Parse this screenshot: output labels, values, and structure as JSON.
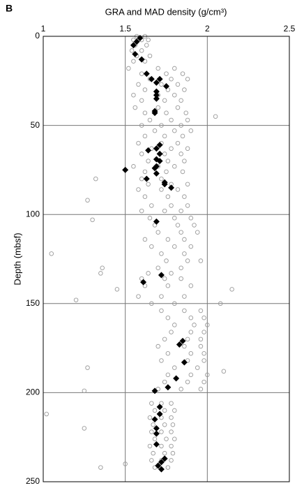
{
  "chart_data": {
    "type": "scatter",
    "panel_label": "B",
    "x_label": "GRA and MAD density (g/cm³)",
    "y_label": "Depth (mbsf)",
    "xlim": [
      1,
      2.5
    ],
    "xticks": [
      1,
      1.5,
      2,
      2.5
    ],
    "ylim": [
      0,
      250
    ],
    "yticks": [
      0,
      50,
      100,
      150,
      200,
      250
    ],
    "y_inverted": true,
    "x_axis_position": "top",
    "grid": true,
    "series": [
      {
        "color": "#999999",
        "marker": "circle",
        "x": [
          1.57,
          1.62,
          1.55,
          1.6,
          1.64,
          1.56,
          1.63,
          1.54,
          1.6,
          1.57,
          1.65,
          1.55,
          1.62,
          1.52,
          1.7,
          1.8,
          1.6,
          1.75,
          1.85,
          1.65,
          1.78,
          1.88,
          1.58,
          1.72,
          1.82,
          1.62,
          1.76,
          1.86,
          1.55,
          1.7,
          1.8,
          1.6,
          1.74,
          1.84,
          1.56,
          1.7,
          1.82,
          1.62,
          1.75,
          1.87,
          2.05,
          1.65,
          1.78,
          1.88,
          1.6,
          1.72,
          1.84,
          1.68,
          1.8,
          1.9,
          1.62,
          1.74,
          1.85,
          1.58,
          1.72,
          1.82,
          1.66,
          1.78,
          1.88,
          1.6,
          1.74,
          1.84,
          1.64,
          1.76,
          1.86,
          1.55,
          1.7,
          1.8,
          1.62,
          1.75,
          1.85,
          1.32,
          1.6,
          1.72,
          1.64,
          1.78,
          1.88,
          1.58,
          1.72,
          1.82,
          1.62,
          1.76,
          1.86,
          1.27,
          1.66,
          1.78,
          1.88,
          1.6,
          1.74,
          1.84,
          1.65,
          1.8,
          1.9,
          1.3,
          1.68,
          1.82,
          1.92,
          1.7,
          1.84,
          1.94,
          1.62,
          1.76,
          1.86,
          1.66,
          1.8,
          1.9,
          1.05,
          1.72,
          1.86,
          1.75,
          1.88,
          1.96,
          1.36,
          1.7,
          1.84,
          1.35,
          1.64,
          1.78,
          1.6,
          1.74,
          1.84,
          1.62,
          1.76,
          1.9,
          1.45,
          2.15,
          1.58,
          1.72,
          1.86,
          1.2,
          1.66,
          1.8,
          2.08,
          1.72,
          1.86,
          1.96,
          1.76,
          1.9,
          1.98,
          1.8,
          1.92,
          2.0,
          1.78,
          1.9,
          1.98,
          1.74,
          1.88,
          1.96,
          1.7,
          1.86,
          1.96,
          1.76,
          1.9,
          1.98,
          1.72,
          1.88,
          1.98,
          1.27,
          1.8,
          1.94,
          2.1,
          1.76,
          1.9,
          2.0,
          1.74,
          1.88,
          1.98,
          1.7,
          1.84,
          1.96,
          1.25,
          1.66,
          1.72,
          1.78,
          1.68,
          1.74,
          1.8,
          1.02,
          1.65,
          1.72,
          1.78,
          1.67,
          1.74,
          1.79,
          1.25,
          1.66,
          1.72,
          1.78,
          1.68,
          1.75,
          1.8,
          1.65,
          1.72,
          1.78,
          1.67,
          1.74,
          1.79,
          1.66,
          1.72,
          1.78,
          1.5,
          1.35,
          1.68,
          1.76
        ],
        "values": [
          0,
          0,
          2,
          2,
          2,
          5,
          5,
          8,
          8,
          11,
          11,
          14,
          14,
          18,
          18,
          18,
          21,
          21,
          21,
          24,
          24,
          24,
          27,
          27,
          27,
          30,
          30,
          30,
          33,
          33,
          33,
          36,
          36,
          36,
          40,
          40,
          40,
          43,
          43,
          43,
          45,
          47,
          47,
          47,
          50,
          50,
          50,
          53,
          53,
          53,
          56,
          56,
          56,
          60,
          60,
          60,
          63,
          63,
          63,
          66,
          66,
          66,
          70,
          70,
          70,
          73,
          73,
          73,
          76,
          76,
          76,
          80,
          80,
          80,
          83,
          83,
          83,
          86,
          86,
          86,
          90,
          90,
          90,
          92,
          95,
          95,
          95,
          98,
          98,
          98,
          102,
          102,
          102,
          103,
          106,
          106,
          106,
          110,
          110,
          110,
          114,
          114,
          114,
          118,
          118,
          118,
          122,
          122,
          122,
          126,
          126,
          126,
          130,
          130,
          130,
          133,
          133,
          133,
          136,
          136,
          136,
          140,
          140,
          140,
          142,
          142,
          146,
          146,
          146,
          148,
          150,
          150,
          150,
          154,
          154,
          154,
          158,
          158,
          158,
          162,
          162,
          162,
          166,
          166,
          166,
          170,
          170,
          170,
          174,
          174,
          174,
          178,
          178,
          178,
          182,
          182,
          182,
          186,
          186,
          186,
          188,
          190,
          190,
          190,
          194,
          194,
          194,
          198,
          198,
          198,
          199,
          206,
          206,
          206,
          210,
          210,
          210,
          212,
          214,
          214,
          214,
          218,
          218,
          218,
          220,
          222,
          222,
          222,
          226,
          226,
          226,
          230,
          230,
          230,
          234,
          234,
          234,
          238,
          238,
          238,
          240,
          242,
          242,
          242
        ]
      },
      {
        "color": "#000000",
        "marker": "diamond",
        "x": [
          1.59,
          1.57,
          1.55,
          1.56,
          1.6,
          1.63,
          1.66,
          1.71,
          1.69,
          1.75,
          1.69,
          1.69,
          1.69,
          1.68,
          1.68,
          1.71,
          1.69,
          1.64,
          1.71,
          1.69,
          1.71,
          1.69,
          1.68,
          1.5,
          1.69,
          1.63,
          1.74,
          1.74,
          1.78,
          1.69,
          1.72,
          1.61,
          1.85,
          1.83,
          1.86,
          1.81,
          1.76,
          1.68,
          1.71,
          1.71,
          1.68,
          1.69,
          1.69,
          1.69,
          1.74,
          1.72,
          1.7,
          1.72
        ],
        "values": [
          1,
          3,
          5,
          10,
          13,
          21,
          24,
          24,
          26,
          28,
          31,
          33,
          35,
          42,
          43,
          61,
          63,
          64,
          66,
          69,
          70,
          73,
          74,
          75,
          77,
          80,
          82,
          83,
          85,
          104,
          134,
          138,
          171,
          173,
          183,
          192,
          197,
          199,
          208,
          212,
          215,
          220,
          223,
          229,
          237,
          239,
          241,
          243
        ]
      }
    ]
  }
}
